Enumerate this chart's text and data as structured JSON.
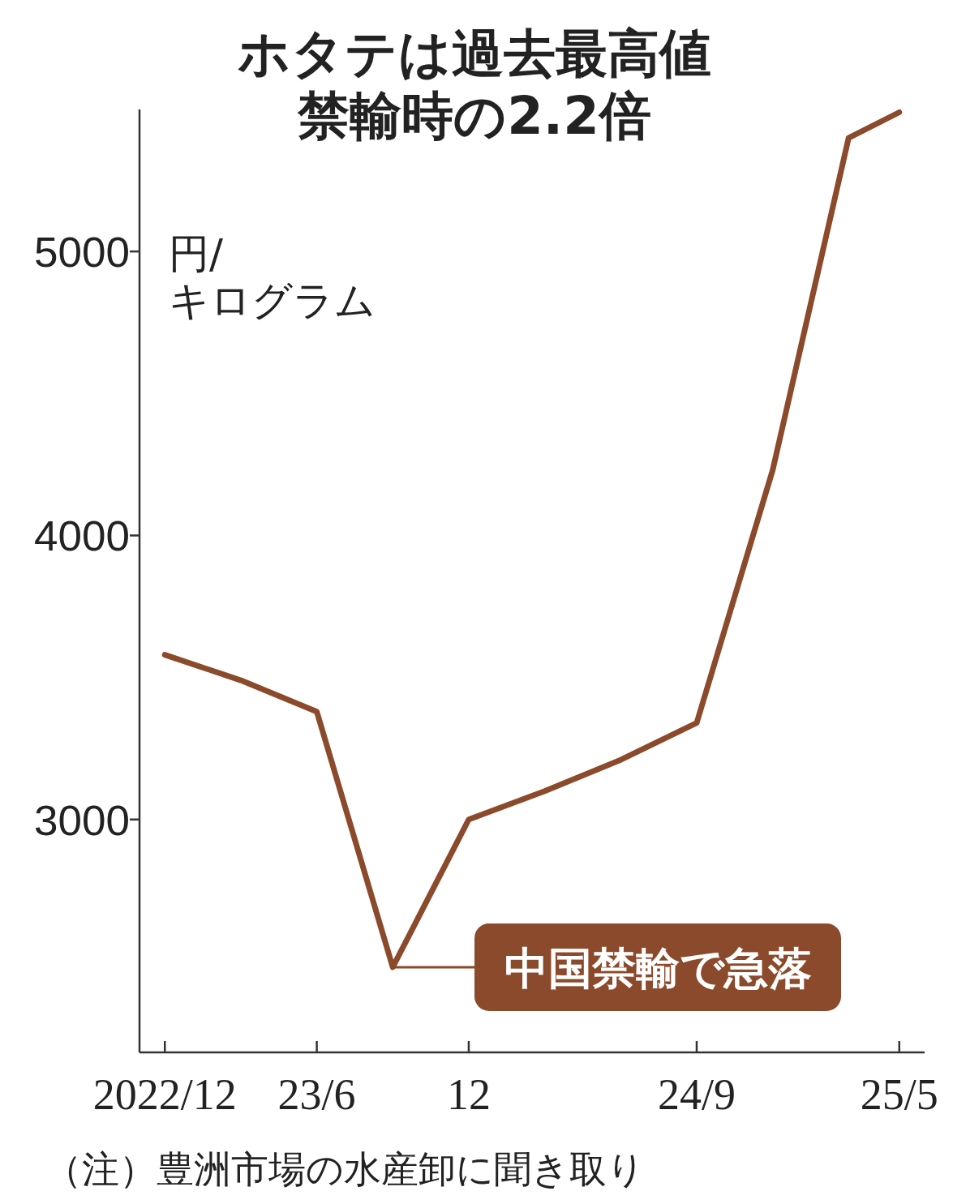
{
  "chart_data": {
    "type": "line",
    "title": "ホタテは過去最高値",
    "subtitle": "禁輸時の2.2倍",
    "ylabel": "円/キログラム",
    "x": [
      "2022-12",
      "2023-03",
      "2023-06",
      "2023-09",
      "2023-12",
      "2024-03",
      "2024-06",
      "2024-09",
      "2024-12",
      "2025-03",
      "2025-05"
    ],
    "values": [
      3580,
      3490,
      3380,
      2480,
      3000,
      3100,
      3210,
      3340,
      4230,
      5400,
      5490
    ],
    "color": "#8b4a2b",
    "line_style": "solid",
    "marker": "none",
    "xlim": [
      "2022-11",
      "2025-06"
    ],
    "xticks": [
      {
        "value": "2022-12",
        "label": "2022/12"
      },
      {
        "value": "2023-06",
        "label": "23/6"
      },
      {
        "value": "2023-12",
        "label": "12"
      },
      {
        "value": "2024-09",
        "label": "24/9"
      },
      {
        "value": "2025-05",
        "label": "25/5"
      }
    ],
    "ylim": [
      2180,
      5500
    ],
    "yticks": [
      3000,
      4000,
      5000
    ],
    "annotations": [
      {
        "text": "中国禁輸で急落",
        "x": "2023-09",
        "y": 2480
      },
      "（注）豊洲市場の水産卸に聞き取り"
    ]
  }
}
